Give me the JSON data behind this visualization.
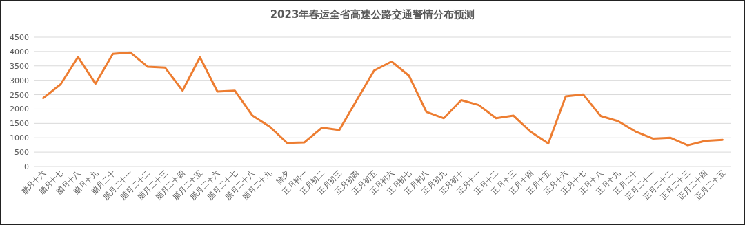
{
  "chart_data": {
    "type": "line",
    "title": "2023年春运全省高速公路交通警情分布预测",
    "categories": [
      "腊月十六",
      "腊月十七",
      "腊月十八",
      "腊月十九",
      "腊月二十",
      "腊月二十一",
      "腊月二十二",
      "腊月二十三",
      "腊月二十四",
      "腊月二十五",
      "腊月二十六",
      "腊月二十七",
      "腊月二十八",
      "腊月二十九",
      "除夕",
      "正月初一",
      "正月初二",
      "正月初三",
      "正月初四",
      "正月初五",
      "正月初六",
      "正月初七",
      "正月初八",
      "正月初九",
      "正月初十",
      "正月十一",
      "正月十二",
      "正月十三",
      "正月十四",
      "正月十五",
      "正月十六",
      "正月十七",
      "正月十八",
      "正月十九",
      "正月二十",
      "正月二十一",
      "正月二十二",
      "正月二十三",
      "正月二十四",
      "正月二十五"
    ],
    "series": [
      {
        "color": "#ed7d31",
        "values": [
          2380,
          2860,
          3810,
          2880,
          3920,
          3970,
          3470,
          3440,
          2640,
          3800,
          2610,
          2640,
          1780,
          1390,
          820,
          840,
          1350,
          1270,
          2310,
          3340,
          3650,
          3160,
          1900,
          1680,
          2310,
          2140,
          1680,
          1770,
          1200,
          800,
          2440,
          2510,
          1760,
          1580,
          1220,
          970,
          1000,
          740,
          890,
          930
        ]
      }
    ],
    "ylim": [
      0,
      4500
    ],
    "yticks": [
      0,
      500,
      1000,
      1500,
      2000,
      2500,
      3000,
      3500,
      4000,
      4500
    ],
    "grid": "y",
    "marker": "none",
    "line_style": "solid"
  }
}
